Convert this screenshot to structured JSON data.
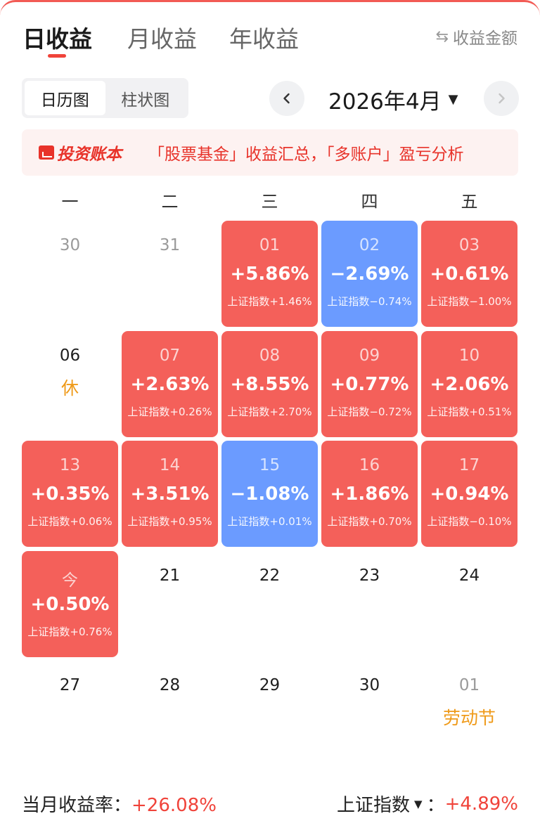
{
  "tabs": {
    "daily": "日收益",
    "monthly": "月收益",
    "yearly": "年收益",
    "amount_toggle": "收益金额"
  },
  "view_toggle": {
    "calendar": "日历图",
    "bar": "柱状图"
  },
  "month_nav": {
    "current": "2026年4月"
  },
  "banner": {
    "brand": "投资账本",
    "text": "「股票基金」收益汇总，「多账户」盈亏分析"
  },
  "weekdays": [
    "一",
    "二",
    "三",
    "四",
    "五"
  ],
  "accent_colors": {
    "gain": "#f4605a",
    "loss": "#6b9bff",
    "holiday": "#ef9a19",
    "active_tab": "#f0433a"
  },
  "calendar": [
    [
      {
        "day": "30",
        "kind": "muted"
      },
      {
        "day": "31",
        "kind": "muted"
      },
      {
        "day": "01",
        "kind": "up",
        "pct": "+5.86%",
        "idx": "上证指数+1.46%"
      },
      {
        "day": "02",
        "kind": "down",
        "pct": "−2.69%",
        "idx": "上证指数−0.74%"
      },
      {
        "day": "03",
        "kind": "up",
        "pct": "+0.61%",
        "idx": "上证指数−1.00%"
      }
    ],
    [
      {
        "day": "06",
        "kind": "plain",
        "note": "休"
      },
      {
        "day": "07",
        "kind": "up",
        "pct": "+2.63%",
        "idx": "上证指数+0.26%"
      },
      {
        "day": "08",
        "kind": "up",
        "pct": "+8.55%",
        "idx": "上证指数+2.70%"
      },
      {
        "day": "09",
        "kind": "up",
        "pct": "+0.77%",
        "idx": "上证指数−0.72%"
      },
      {
        "day": "10",
        "kind": "up",
        "pct": "+2.06%",
        "idx": "上证指数+0.51%"
      }
    ],
    [
      {
        "day": "13",
        "kind": "up",
        "pct": "+0.35%",
        "idx": "上证指数+0.06%"
      },
      {
        "day": "14",
        "kind": "up",
        "pct": "+3.51%",
        "idx": "上证指数+0.95%"
      },
      {
        "day": "15",
        "kind": "down",
        "pct": "−1.08%",
        "idx": "上证指数+0.01%"
      },
      {
        "day": "16",
        "kind": "up",
        "pct": "+1.86%",
        "idx": "上证指数+0.70%"
      },
      {
        "day": "17",
        "kind": "up",
        "pct": "+0.94%",
        "idx": "上证指数−0.10%"
      }
    ],
    [
      {
        "day": "今",
        "kind": "up",
        "pct": "+0.50%",
        "idx": "上证指数+0.76%"
      },
      {
        "day": "21",
        "kind": "plain"
      },
      {
        "day": "22",
        "kind": "plain"
      },
      {
        "day": "23",
        "kind": "plain"
      },
      {
        "day": "24",
        "kind": "plain"
      }
    ],
    [
      {
        "day": "27",
        "kind": "plain"
      },
      {
        "day": "28",
        "kind": "plain"
      },
      {
        "day": "29",
        "kind": "plain"
      },
      {
        "day": "30",
        "kind": "plain"
      },
      {
        "day": "01",
        "kind": "muted",
        "note": "劳动节"
      }
    ]
  ],
  "footer": {
    "month_return_label": "当月收益率：",
    "month_return_value": "+26.08%",
    "index_label": "上证指数",
    "index_sep": "：",
    "index_value": "+4.89%"
  }
}
